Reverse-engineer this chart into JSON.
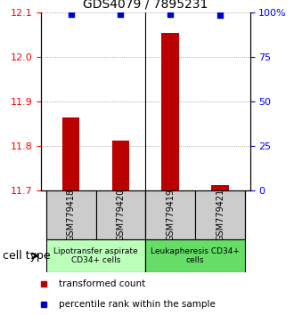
{
  "title": "GDS4079 / 7895231",
  "samples": [
    "GSM779418",
    "GSM779420",
    "GSM779419",
    "GSM779421"
  ],
  "transformed_counts": [
    11.865,
    11.812,
    12.055,
    11.713
  ],
  "percentile_ranks": [
    99.0,
    99.0,
    99.0,
    98.5
  ],
  "ylim_left": [
    11.7,
    12.1
  ],
  "ylim_right": [
    0,
    100
  ],
  "yticks_left": [
    11.7,
    11.8,
    11.9,
    12.0,
    12.1
  ],
  "yticks_right": [
    0,
    25,
    50,
    75,
    100
  ],
  "ytick_labels_right": [
    "0",
    "25",
    "50",
    "75",
    "100%"
  ],
  "cell_type_groups": [
    {
      "label": "Lipotransfer aspirate\nCD34+ cells",
      "samples": [
        0,
        1
      ],
      "color": "#bbffbb"
    },
    {
      "label": "Leukapheresis CD34+\ncells",
      "samples": [
        2,
        3
      ],
      "color": "#66dd66"
    }
  ],
  "bar_color": "#bb0000",
  "dot_color": "#0000cc",
  "bar_width": 0.35,
  "legend_bar_label": "transformed count",
  "legend_dot_label": "percentile rank within the sample",
  "cell_type_label": "cell type",
  "sample_box_color": "#cccccc",
  "grid_color": "#888888",
  "background_color": "#ffffff",
  "title_fontsize": 10,
  "tick_fontsize": 8,
  "sample_fontsize": 7,
  "celltype_fontsize": 6.5,
  "legend_fontsize": 7.5,
  "celllabel_fontsize": 9
}
